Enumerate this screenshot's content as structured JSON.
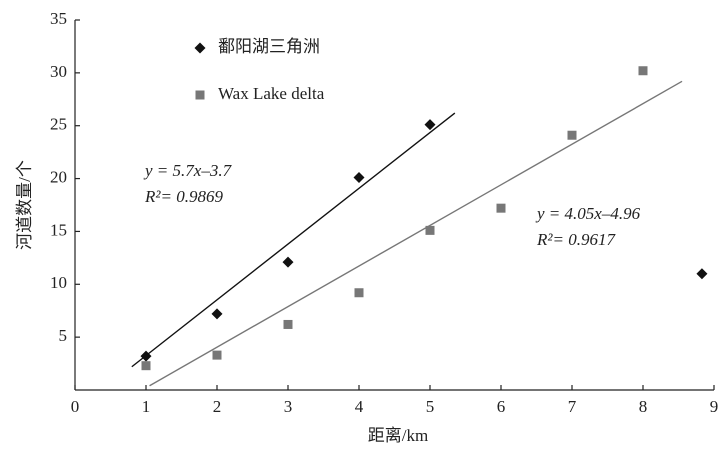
{
  "chart_data": {
    "type": "scatter",
    "x_label": "距离/km",
    "y_label": "河道数量/个",
    "xlim": [
      0,
      9
    ],
    "ylim": [
      0,
      35
    ],
    "xticks": [
      0,
      1,
      2,
      3,
      4,
      5,
      6,
      7,
      8,
      9
    ],
    "yticks": [
      5,
      10,
      15,
      20,
      25,
      30,
      35
    ],
    "grid": false,
    "series": [
      {
        "name": "鄱阳湖三角洲",
        "color": "#111111",
        "marker": "diamond",
        "x": [
          1,
          2,
          3,
          4,
          5,
          8.83
        ],
        "values": [
          3.2,
          7.2,
          12.1,
          20.1,
          25.1,
          11
        ],
        "trend": {
          "x": [
            0.8,
            5.35
          ],
          "values": [
            2.2,
            26.2
          ]
        }
      },
      {
        "name": "Wax Lake delta",
        "color": "#777777",
        "marker": "square",
        "x": [
          1,
          2,
          3,
          4,
          5,
          6,
          7,
          8
        ],
        "values": [
          2.3,
          3.3,
          6.2,
          9.2,
          15.1,
          17.2,
          24.1,
          30.2
        ],
        "trend": {
          "x": [
            1.05,
            8.55
          ],
          "values": [
            0.4,
            29.2
          ]
        }
      }
    ],
    "annotations": [
      "y = 5.7x–3.7",
      "R²= 0.9869",
      "y = 4.05x–4.96",
      "R²= 0.9617"
    ]
  }
}
